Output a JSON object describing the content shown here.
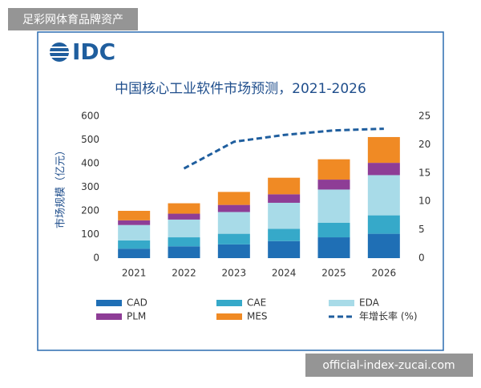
{
  "watermarks": {
    "top": "足彩网体育品牌资产",
    "bottom": "official-index-zucai.com"
  },
  "logo": "IDC",
  "chart_data": {
    "type": "bar",
    "stacked": true,
    "title": "中国核心工业软件市场预测，2021-2026",
    "y_label": "市场规模（亿元）",
    "categories": [
      "2021",
      "2022",
      "2023",
      "2024",
      "2025",
      "2026"
    ],
    "series": [
      {
        "name": "CAD",
        "type": "bar",
        "color": "#1f6fb5",
        "values": [
          40,
          50,
          58,
          72,
          88,
          103
        ]
      },
      {
        "name": "CAE",
        "type": "bar",
        "color": "#36a9c9",
        "values": [
          35,
          38,
          45,
          52,
          62,
          78
        ]
      },
      {
        "name": "EDA",
        "type": "bar",
        "color": "#a8dbe8",
        "values": [
          65,
          75,
          92,
          110,
          140,
          170
        ]
      },
      {
        "name": "PLM",
        "type": "bar",
        "color": "#8e3d96",
        "values": [
          20,
          25,
          30,
          36,
          42,
          52
        ]
      },
      {
        "name": "MES",
        "type": "bar",
        "color": "#f08a24",
        "values": [
          40,
          44,
          55,
          70,
          86,
          109
        ]
      },
      {
        "name": "年增长率 (%)",
        "type": "line",
        "axis": "y2",
        "color": "#1f5e9e",
        "values": [
          null,
          15.8,
          20.5,
          21.7,
          22.5,
          22.8
        ]
      }
    ],
    "ylim": [
      0,
      600
    ],
    "yticks": [
      0,
      100,
      200,
      300,
      400,
      500,
      600
    ],
    "y2lim": [
      0,
      25
    ],
    "y2ticks": [
      0,
      5,
      10,
      15,
      20,
      25
    ],
    "grid": false
  }
}
